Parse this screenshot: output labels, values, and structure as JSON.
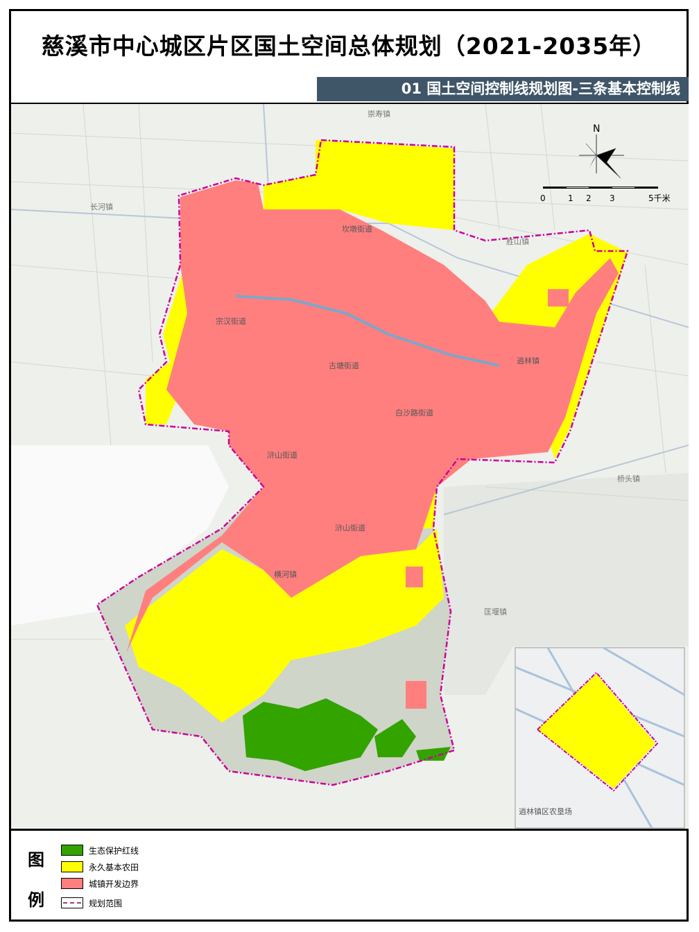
{
  "title": "慈溪市中心城区片区国土空间总体规划（2021-2035年）",
  "subtitle": "01 国土空间控制线规划图-三条基本控制线",
  "map": {
    "north_label": "N",
    "scale_bar": {
      "ticks": [
        "0",
        "1",
        "2",
        "3",
        "5千米"
      ]
    },
    "place_labels": {
      "chongshou": "崇寿镇",
      "changhe": "长河镇",
      "kandun": "坎墩街道",
      "shengshan": "胜山镇",
      "zonghan": "宗汉街道",
      "gutang": "古塘街道",
      "xiaolin": "逍林镇",
      "baishalu": "白沙路街道",
      "hushan1": "浒山街道",
      "hushan2": "浒山街道",
      "qiaotou": "桥头镇",
      "henghe": "横河镇",
      "kuangyan": "匡堰镇"
    },
    "inset_label": "逍林镇区农垦场"
  },
  "legend": {
    "title_top": "图",
    "title_bottom": "例",
    "items": [
      {
        "label": "生态保护红线",
        "color": "#33a300"
      },
      {
        "label": "永久基本农田",
        "color": "#ffff00"
      },
      {
        "label": "城镇开发边界",
        "color": "#ff7f7f"
      },
      {
        "label": "规划范围",
        "color": "#cc0099"
      }
    ]
  }
}
